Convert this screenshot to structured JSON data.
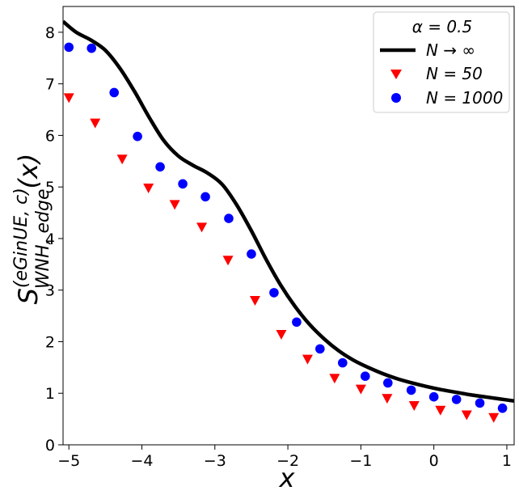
{
  "chart_data": {
    "type": "scatter",
    "title": "",
    "xlabel": "x",
    "ylabel_main": "S",
    "ylabel_super": "(eGinUE, c)",
    "ylabel_sub": "WNH, edge",
    "ylabel_arg": "(x)",
    "xlim": [
      -5.08,
      1.1
    ],
    "ylim": [
      0,
      8.5
    ],
    "xticks": [
      -5,
      -4,
      -3,
      -2,
      -1,
      0,
      1
    ],
    "xtick_labels": [
      "−5",
      "−4",
      "−3",
      "−2",
      "−1",
      "0",
      "1"
    ],
    "yticks": [
      0,
      1,
      2,
      3,
      4,
      5,
      6,
      7,
      8
    ],
    "ytick_labels": [
      "0",
      "1",
      "2",
      "3",
      "4",
      "5",
      "6",
      "7",
      "8"
    ],
    "grid": false,
    "legend": {
      "position": "top-right",
      "title": "α = 0.5",
      "entries": [
        "N → ∞",
        "N = 50",
        "N = 1000"
      ]
    },
    "series": [
      {
        "name": "N → ∞",
        "kind": "line",
        "color": "#000000",
        "x": [
          -5.08,
          -4.9,
          -4.7,
          -4.5,
          -4.3,
          -4.1,
          -3.9,
          -3.7,
          -3.5,
          -3.3,
          -3.1,
          -2.9,
          -2.7,
          -2.5,
          -2.3,
          -2.1,
          -1.9,
          -1.7,
          -1.5,
          -1.3,
          -1.1,
          -0.9,
          -0.7,
          -0.5,
          -0.3,
          -0.1,
          0.1,
          0.3,
          0.5,
          0.7,
          0.9,
          1.1
        ],
        "y": [
          8.21,
          8.0,
          7.85,
          7.65,
          7.3,
          6.85,
          6.35,
          5.9,
          5.6,
          5.42,
          5.27,
          5.05,
          4.65,
          4.15,
          3.6,
          3.1,
          2.68,
          2.33,
          2.05,
          1.82,
          1.64,
          1.5,
          1.38,
          1.28,
          1.2,
          1.13,
          1.07,
          1.02,
          0.97,
          0.93,
          0.89,
          0.85
        ]
      },
      {
        "name": "N = 50",
        "kind": "triangle-down",
        "color": "#ff0000",
        "x": [
          -5.0,
          -4.64,
          -4.27,
          -3.91,
          -3.55,
          -3.18,
          -2.82,
          -2.45,
          -2.09,
          -1.73,
          -1.36,
          -1.0,
          -0.64,
          -0.27,
          0.09,
          0.45,
          0.82
        ],
        "y": [
          6.73,
          6.24,
          5.54,
          4.98,
          4.66,
          4.22,
          3.58,
          2.8,
          2.14,
          1.66,
          1.29,
          1.08,
          0.9,
          0.76,
          0.67,
          0.58,
          0.53
        ]
      },
      {
        "name": "N = 1000",
        "kind": "circle",
        "color": "#0000ff",
        "x": [
          -5.0,
          -4.69,
          -4.38,
          -4.06,
          -3.75,
          -3.44,
          -3.13,
          -2.81,
          -2.5,
          -2.19,
          -1.88,
          -1.56,
          -1.25,
          -0.94,
          -0.63,
          -0.31,
          0.0,
          0.31,
          0.63,
          0.94
        ],
        "y": [
          7.71,
          7.69,
          6.83,
          5.98,
          5.39,
          5.06,
          4.81,
          4.39,
          3.7,
          2.95,
          2.38,
          1.86,
          1.59,
          1.33,
          1.2,
          1.06,
          0.93,
          0.88,
          0.81,
          0.71
        ]
      }
    ]
  }
}
